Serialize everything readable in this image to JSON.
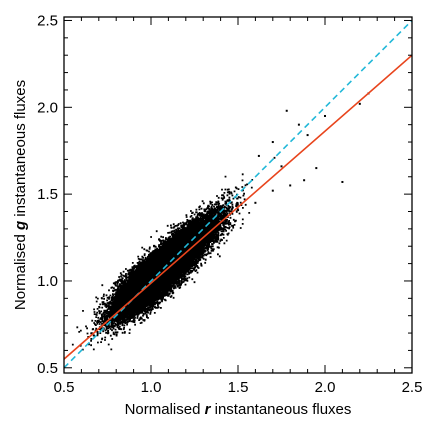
{
  "chart_data": {
    "type": "scatter",
    "xlabel": {
      "prefix": "Normalised ",
      "variable": "r",
      "suffix": " instantaneous fluxes"
    },
    "ylabel": {
      "prefix": "Normalised ",
      "variable": "g",
      "suffix": " instantaneous fluxes"
    },
    "xlim": [
      0.5,
      2.5
    ],
    "ylim": [
      0.47,
      2.52
    ],
    "xticks": [
      "0.5",
      "1.0",
      "1.5",
      "2.0",
      "2.5"
    ],
    "yticks": [
      "0.5",
      "1.0",
      "1.5",
      "2.0",
      "2.5"
    ],
    "xtick_values": [
      0.5,
      1.0,
      1.5,
      2.0,
      2.5
    ],
    "ytick_values": [
      0.5,
      1.0,
      1.5,
      2.0,
      2.5
    ],
    "grid": false,
    "legend": "none",
    "series": [
      {
        "kind": "points",
        "color": "#000000",
        "distribution": {
          "center": [
            1.05,
            1.05
          ],
          "principal_axis_slope": 0.95,
          "sd_major": 0.16,
          "sd_minor": 0.045,
          "approx_count": 30000,
          "x_extent": [
            0.55,
            2.3
          ],
          "y_extent": [
            0.52,
            2.1
          ]
        },
        "outliers": [
          [
            1.62,
            1.72
          ],
          [
            1.7,
            1.8
          ],
          [
            1.75,
            1.66
          ],
          [
            1.85,
            1.9
          ],
          [
            1.9,
            1.84
          ],
          [
            1.95,
            1.65
          ],
          [
            2.1,
            1.57
          ],
          [
            2.25,
            2.08
          ],
          [
            2.2,
            2.02
          ],
          [
            1.88,
            1.58
          ],
          [
            1.8,
            1.55
          ],
          [
            2.0,
            1.95
          ],
          [
            1.7,
            1.52
          ],
          [
            1.6,
            1.45
          ],
          [
            1.78,
            1.98
          ]
        ]
      },
      {
        "kind": "line",
        "style": "dashed",
        "color": "#22b8d8",
        "x": [
          0.5,
          2.5
        ],
        "y": [
          0.5,
          2.5
        ]
      },
      {
        "kind": "line",
        "style": "solid",
        "color": "#e8441c",
        "x": [
          0.5,
          2.5
        ],
        "y": [
          0.55,
          2.3
        ]
      }
    ]
  }
}
